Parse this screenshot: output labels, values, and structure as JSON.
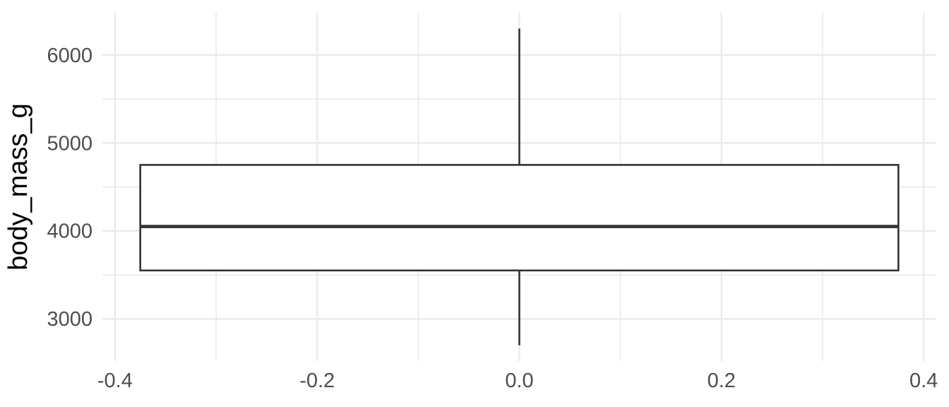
{
  "chart_data": {
    "type": "boxplot",
    "orientation": "vertical",
    "title": "",
    "xlabel": "",
    "ylabel": "body_mass_g",
    "x_ticks": [
      -0.4,
      -0.2,
      0.0,
      0.2,
      0.4
    ],
    "x_tick_labels": [
      "-0.4",
      "-0.2",
      "0.0",
      "0.2",
      "0.4"
    ],
    "x_minor_ticks": [
      -0.3,
      -0.1,
      0.1,
      0.3
    ],
    "xlim": [
      -0.4125,
      0.4125
    ],
    "y_ticks": [
      3000,
      4000,
      5000,
      6000
    ],
    "y_tick_labels": [
      "3000",
      "4000",
      "5000",
      "6000"
    ],
    "y_minor_ticks": [
      3500,
      4500,
      5500
    ],
    "ylim": [
      2520,
      6480
    ],
    "grid": "major+minor",
    "legend": "none",
    "series": [
      {
        "name": "body_mass_g",
        "x_center": 0,
        "box_half_width": 0.375,
        "whisker_min": 2700,
        "q1": 3550,
        "median": 4050,
        "q3": 4750,
        "whisker_max": 6300,
        "outliers": []
      }
    ],
    "colors": {
      "background": "#ffffff",
      "grid_major": "#e9e9e9",
      "grid_minor": "#ebebeb",
      "box_stroke": "#333333",
      "box_fill": "#ffffff",
      "median_stroke": "#333333",
      "whisker_stroke": "#333333",
      "axis_text": "#4d4d4d",
      "axis_title": "#000000"
    }
  }
}
